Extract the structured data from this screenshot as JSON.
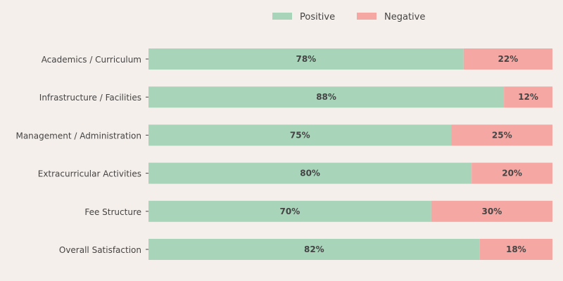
{
  "chart_data": {
    "type": "bar",
    "orientation": "horizontal",
    "stacked": true,
    "percent_stacked": true,
    "categories": [
      "Academics / Curriculum",
      "Infrastructure / Facilities",
      "Management / Administration",
      "Extracurricular Activities",
      "Fee Structure",
      "Overall Satisfaction"
    ],
    "series": [
      {
        "name": "Positive",
        "color": "#a8d5ba",
        "values": [
          78,
          88,
          75,
          80,
          70,
          82
        ],
        "labels": [
          "78%",
          "88%",
          "75%",
          "80%",
          "70%",
          "82%"
        ]
      },
      {
        "name": "Negative",
        "color": "#f5a8a3",
        "values": [
          22,
          12,
          25,
          20,
          30,
          18
        ],
        "labels": [
          "22%",
          "12%",
          "25%",
          "20%",
          "30%",
          "18%"
        ]
      }
    ],
    "xlim": [
      0,
      100
    ],
    "title": "",
    "xlabel": "",
    "ylabel": "",
    "grid": false,
    "legend_position": "top-center",
    "background_color": "#f5efeb",
    "label_color": "#444444"
  }
}
